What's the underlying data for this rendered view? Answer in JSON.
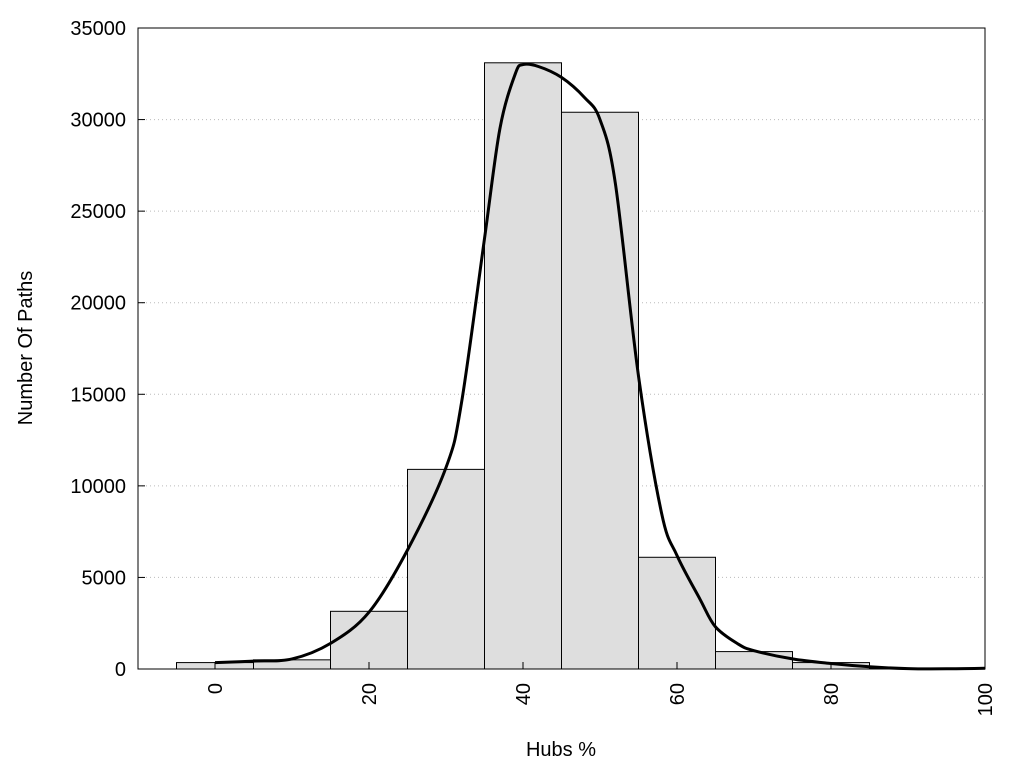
{
  "chart_data": {
    "type": "bar",
    "title": "",
    "xlabel": "Hubs %",
    "ylabel": "Number Of Paths",
    "xlim": [
      -10,
      100
    ],
    "ylim": [
      0,
      35000
    ],
    "x_ticks": [
      0,
      20,
      40,
      60,
      80,
      100
    ],
    "y_ticks": [
      0,
      5000,
      10000,
      15000,
      20000,
      25000,
      30000,
      35000
    ],
    "grid": "horizontal dotted",
    "bin_width": 10,
    "bars": [
      {
        "x": 0,
        "value": 350
      },
      {
        "x": 10,
        "value": 500
      },
      {
        "x": 20,
        "value": 3150
      },
      {
        "x": 30,
        "value": 10900
      },
      {
        "x": 40,
        "value": 33100
      },
      {
        "x": 50,
        "value": 30400
      },
      {
        "x": 60,
        "value": 6100
      },
      {
        "x": 70,
        "value": 950
      },
      {
        "x": 80,
        "value": 350
      },
      {
        "x": 90,
        "value": 40
      },
      {
        "x": 100,
        "value": 0
      }
    ],
    "curve": {
      "x": [
        0,
        5,
        10,
        15,
        20,
        25,
        30,
        32,
        35,
        37,
        39,
        40,
        42,
        45,
        48,
        50,
        52,
        55,
        58,
        60,
        63,
        65,
        68,
        70,
        75,
        80,
        85,
        90,
        95,
        100
      ],
      "y": [
        350,
        430,
        550,
        1400,
        3100,
        6500,
        11000,
        14500,
        23500,
        29500,
        32500,
        33000,
        32900,
        32300,
        31200,
        30000,
        26500,
        16000,
        8500,
        6200,
        3800,
        2300,
        1350,
        1000,
        550,
        300,
        120,
        20,
        10,
        40
      ]
    },
    "colors": {
      "bar_fill": "#dedede",
      "bar_stroke": "#000000",
      "curve": "#000000",
      "grid": "#bbbbbb"
    }
  }
}
